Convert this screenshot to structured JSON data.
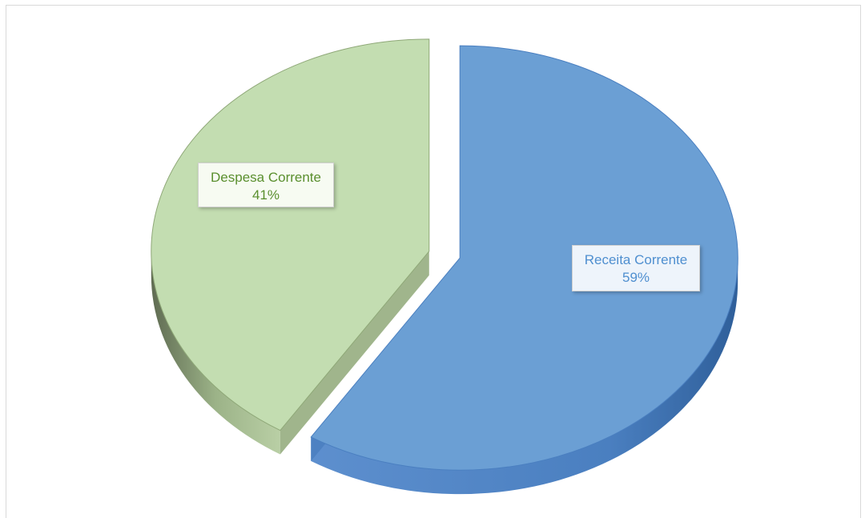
{
  "chart_data": {
    "type": "pie",
    "title": "",
    "legend": "none",
    "style": "3d-exploded",
    "slices": [
      {
        "name": "Receita Corrente",
        "value": 59,
        "percent_label": "59%",
        "color": "#6b9fd4",
        "side_color": "#4a7fc0"
      },
      {
        "name": "Despesa Corrente",
        "value": 41,
        "percent_label": "41%",
        "color": "#c3ddb1",
        "side_color": "#8fa878"
      }
    ]
  }
}
